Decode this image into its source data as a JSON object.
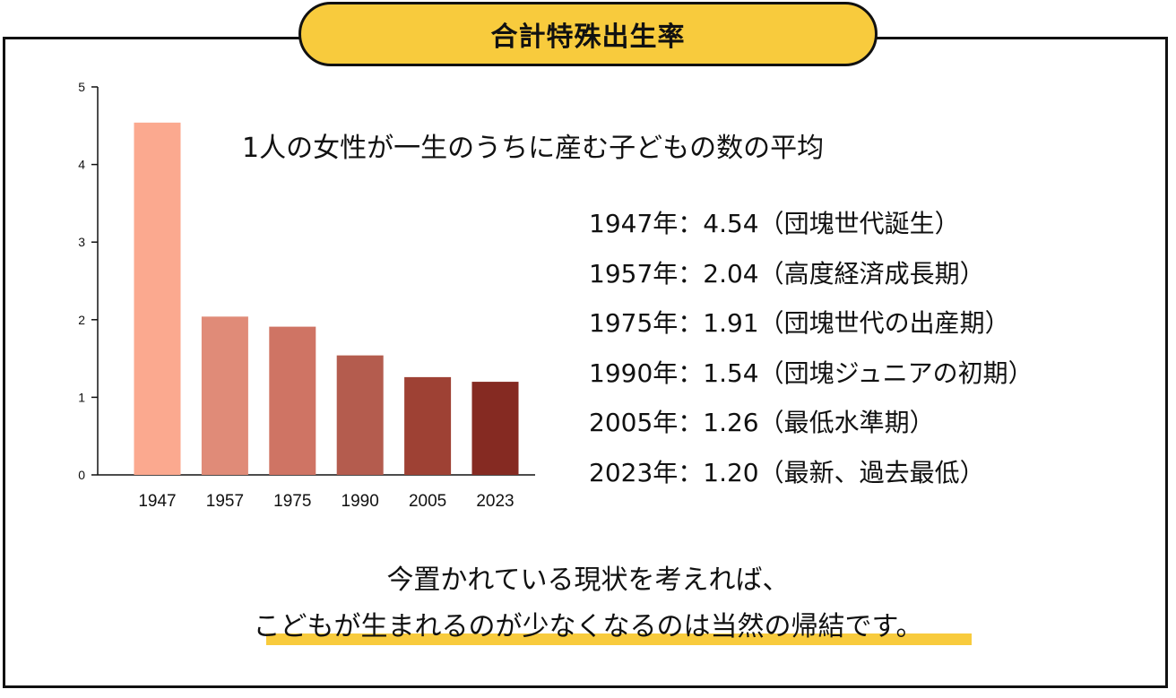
{
  "title": "合計特殊出生率",
  "subtitle": "1人の女性が一生のうちに産む子どもの数の平均",
  "chart_data": {
    "type": "bar",
    "categories": [
      "1947",
      "1957",
      "1975",
      "1990",
      "2005",
      "2023"
    ],
    "values": [
      4.54,
      2.04,
      1.91,
      1.54,
      1.26,
      1.2
    ],
    "ylim": [
      0,
      5
    ],
    "yticks": [
      "0",
      "1",
      "2",
      "3",
      "4",
      "5"
    ],
    "colors": [
      "#fba98f",
      "#e08b78",
      "#cf7464",
      "#b45c4e",
      "#9e4134",
      "#852a22"
    ],
    "grid": false,
    "legend": "none"
  },
  "annotations": [
    "1947年：4.54（団塊世代誕生）",
    "1957年：2.04（高度経済成長期）",
    "1975年：1.91（団塊世代の出産期）",
    "1990年：1.54（団塊ジュニアの初期）",
    "2005年：1.26（最低水準期）",
    "2023年：1.20（最新、過去最低）"
  ],
  "conclusion": {
    "line1": "今置かれている現状を考えれば、",
    "line2": "こどもが生まれるのが少なくなるのは当然の帰結です。"
  },
  "colors": {
    "accent": "#f8cb3d",
    "frame": "#111111"
  }
}
